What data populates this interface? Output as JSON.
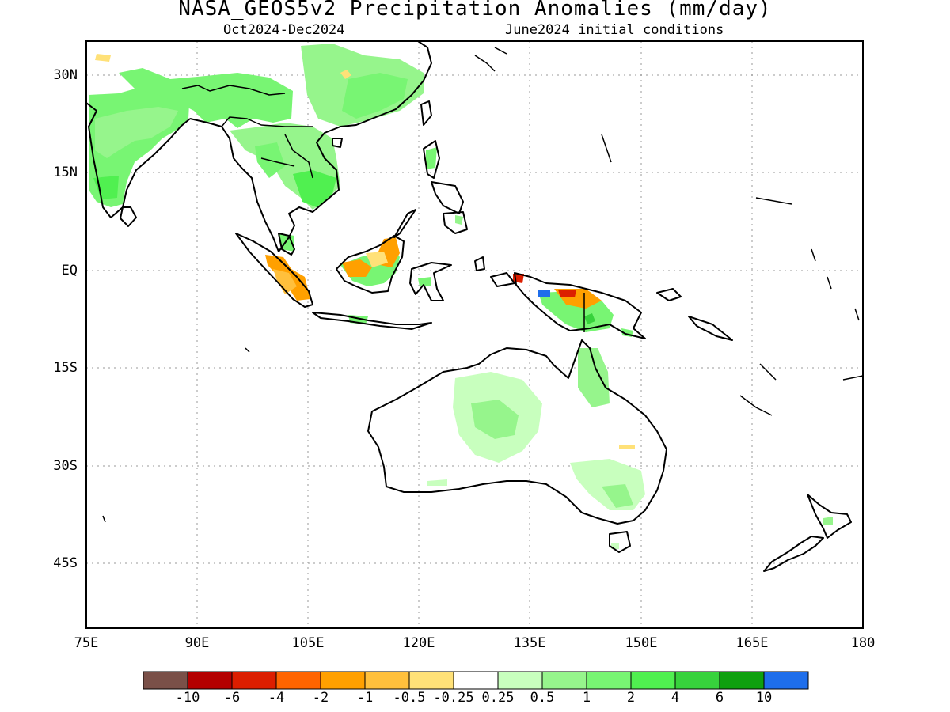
{
  "header": {
    "title": "NASA_GEOS5v2 Precipitation Anomalies (mm/day)",
    "period": "Oct2024-Dec2024",
    "init": "June2024 initial conditions"
  },
  "map": {
    "lon_range": [
      75,
      180
    ],
    "lat_range": [
      -55,
      35
    ],
    "lat_ticks": [
      "30N",
      "15N",
      "EQ",
      "15S",
      "30S",
      "45S"
    ],
    "lon_ticks": [
      "75E",
      "90E",
      "105E",
      "120E",
      "135E",
      "150E",
      "165E",
      "180"
    ],
    "grid": "dotted",
    "coastline_color": "#000000"
  },
  "colorbar": {
    "colors": [
      "#7a5048",
      "#b40000",
      "#dc1e00",
      "#ff6400",
      "#ffa000",
      "#ffc03c",
      "#ffe178",
      "#ffffff",
      "#c8ffbe",
      "#96f58c",
      "#78f573",
      "#50f050",
      "#37d23c",
      "#0fa00f",
      "#1e6eeb"
    ],
    "labels": [
      "-10",
      "-6",
      "-4",
      "-2",
      "-1",
      "-0.5",
      "-0.25",
      "0.25",
      "0.5",
      "1",
      "2",
      "4",
      "6",
      "10"
    ]
  }
}
